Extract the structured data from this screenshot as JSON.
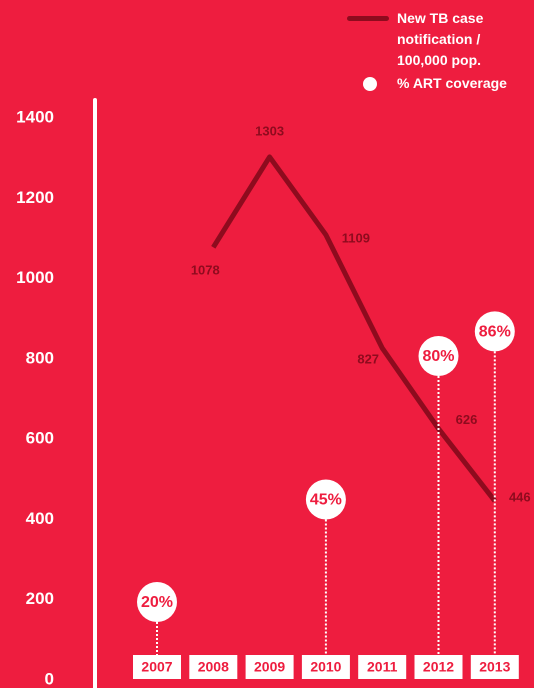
{
  "chart_data": {
    "type": "line",
    "categories": [
      "2007",
      "2008",
      "2009",
      "2010",
      "2011",
      "2012",
      "2013"
    ],
    "series": [
      {
        "name": "New TB case notification / 100,000 pop.",
        "color": "#8e0b1e",
        "values": [
          null,
          1078,
          1303,
          1109,
          827,
          626,
          446
        ]
      },
      {
        "name": "% ART coverage",
        "color": "#ffffff",
        "axis": "y2",
        "values": [
          20,
          null,
          null,
          45,
          null,
          80,
          86
        ],
        "value_labels": [
          "20%",
          null,
          null,
          "45%",
          null,
          "80%",
          "86%"
        ]
      }
    ],
    "ylim": [
      0,
      1400
    ],
    "yticks": [
      0,
      200,
      400,
      600,
      800,
      1000,
      1200,
      1400
    ],
    "y2lim": [
      0,
      100
    ],
    "legend": "top-right"
  }
}
